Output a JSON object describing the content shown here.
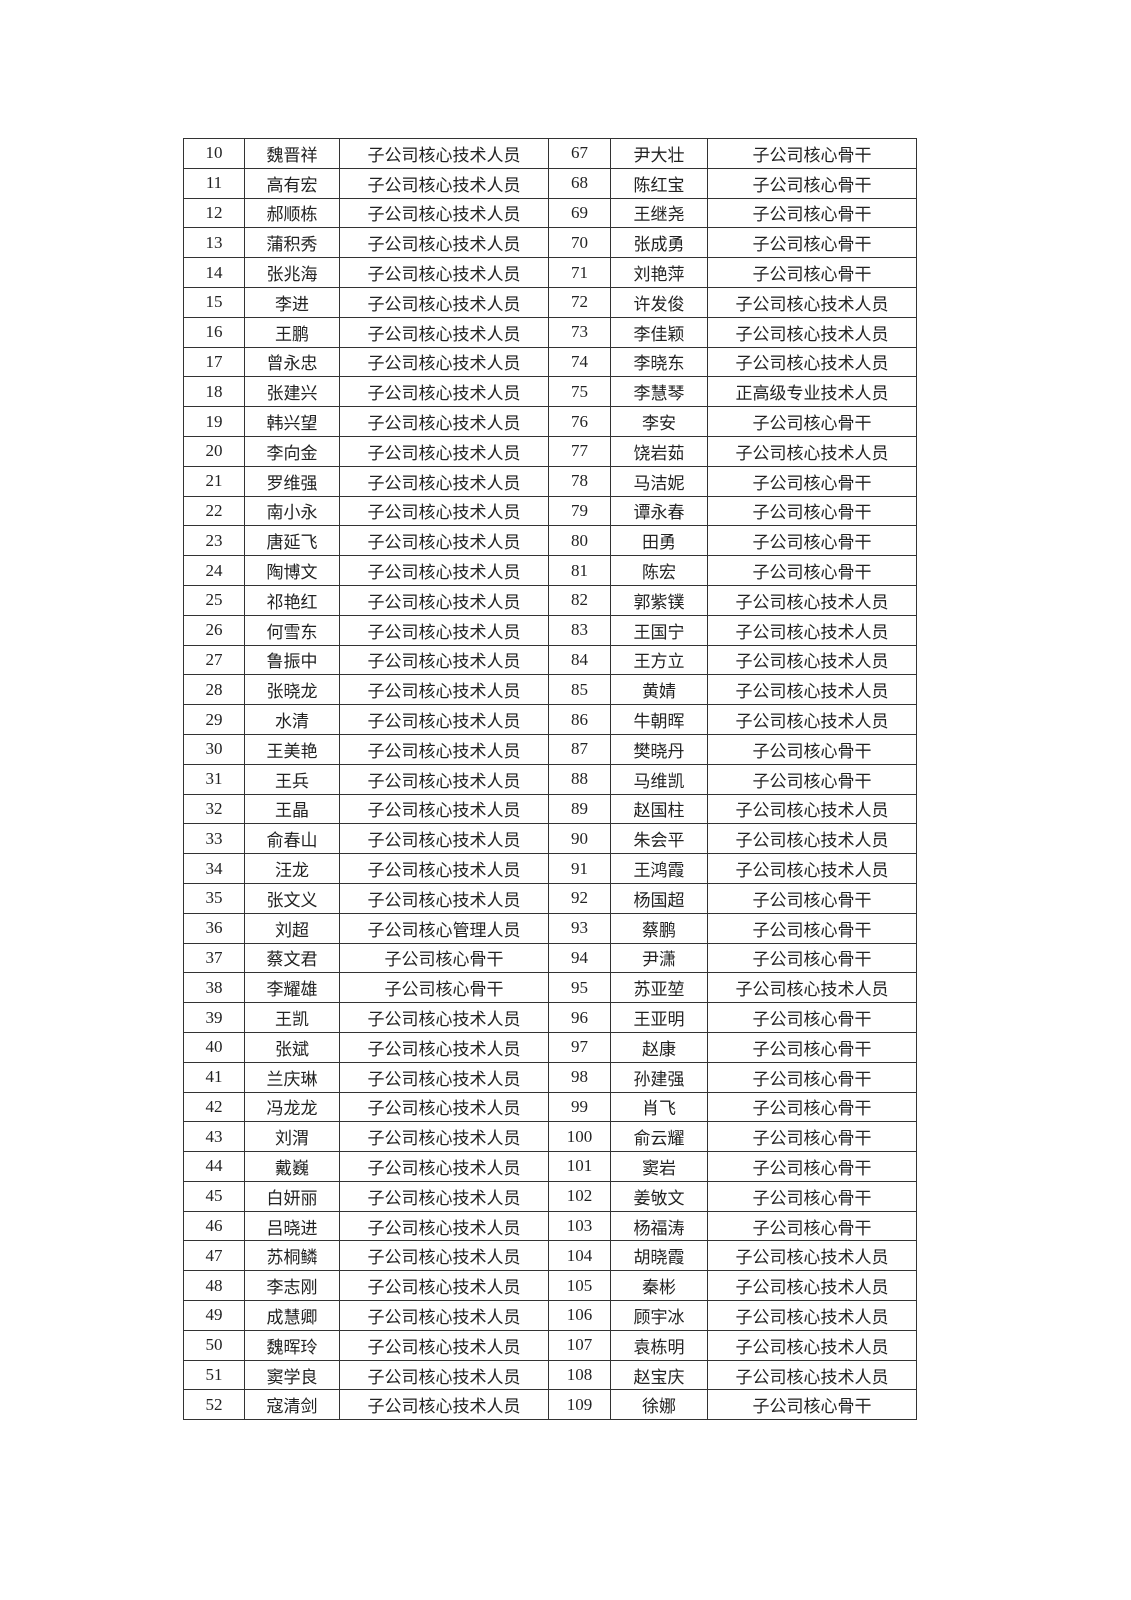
{
  "table": {
    "rows": [
      [
        "10",
        "魏晋祥",
        "子公司核心技术人员",
        "67",
        "尹大壮",
        "子公司核心骨干"
      ],
      [
        "11",
        "高有宏",
        "子公司核心技术人员",
        "68",
        "陈红宝",
        "子公司核心骨干"
      ],
      [
        "12",
        "郝顺栋",
        "子公司核心技术人员",
        "69",
        "王继尧",
        "子公司核心骨干"
      ],
      [
        "13",
        "蒲积秀",
        "子公司核心技术人员",
        "70",
        "张成勇",
        "子公司核心骨干"
      ],
      [
        "14",
        "张兆海",
        "子公司核心技术人员",
        "71",
        "刘艳萍",
        "子公司核心骨干"
      ],
      [
        "15",
        "李进",
        "子公司核心技术人员",
        "72",
        "许发俊",
        "子公司核心技术人员"
      ],
      [
        "16",
        "王鹏",
        "子公司核心技术人员",
        "73",
        "李佳颖",
        "子公司核心技术人员"
      ],
      [
        "17",
        "曾永忠",
        "子公司核心技术人员",
        "74",
        "李晓东",
        "子公司核心技术人员"
      ],
      [
        "18",
        "张建兴",
        "子公司核心技术人员",
        "75",
        "李慧琴",
        "正高级专业技术人员"
      ],
      [
        "19",
        "韩兴望",
        "子公司核心技术人员",
        "76",
        "李安",
        "子公司核心骨干"
      ],
      [
        "20",
        "李向金",
        "子公司核心技术人员",
        "77",
        "饶岩茹",
        "子公司核心技术人员"
      ],
      [
        "21",
        "罗维强",
        "子公司核心技术人员",
        "78",
        "马洁妮",
        "子公司核心骨干"
      ],
      [
        "22",
        "南小永",
        "子公司核心技术人员",
        "79",
        "谭永春",
        "子公司核心骨干"
      ],
      [
        "23",
        "唐延飞",
        "子公司核心技术人员",
        "80",
        "田勇",
        "子公司核心骨干"
      ],
      [
        "24",
        "陶博文",
        "子公司核心技术人员",
        "81",
        "陈宏",
        "子公司核心骨干"
      ],
      [
        "25",
        "祁艳红",
        "子公司核心技术人员",
        "82",
        "郭紫镤",
        "子公司核心技术人员"
      ],
      [
        "26",
        "何雪东",
        "子公司核心技术人员",
        "83",
        "王国宁",
        "子公司核心技术人员"
      ],
      [
        "27",
        "鲁振中",
        "子公司核心技术人员",
        "84",
        "王方立",
        "子公司核心技术人员"
      ],
      [
        "28",
        "张晓龙",
        "子公司核心技术人员",
        "85",
        "黄婧",
        "子公司核心技术人员"
      ],
      [
        "29",
        "水清",
        "子公司核心技术人员",
        "86",
        "牛朝晖",
        "子公司核心技术人员"
      ],
      [
        "30",
        "王美艳",
        "子公司核心技术人员",
        "87",
        "樊晓丹",
        "子公司核心骨干"
      ],
      [
        "31",
        "王兵",
        "子公司核心技术人员",
        "88",
        "马维凯",
        "子公司核心骨干"
      ],
      [
        "32",
        "王晶",
        "子公司核心技术人员",
        "89",
        "赵国柱",
        "子公司核心技术人员"
      ],
      [
        "33",
        "俞春山",
        "子公司核心技术人员",
        "90",
        "朱会平",
        "子公司核心技术人员"
      ],
      [
        "34",
        "汪龙",
        "子公司核心技术人员",
        "91",
        "王鸿霞",
        "子公司核心技术人员"
      ],
      [
        "35",
        "张文义",
        "子公司核心技术人员",
        "92",
        "杨国超",
        "子公司核心骨干"
      ],
      [
        "36",
        "刘超",
        "子公司核心管理人员",
        "93",
        "蔡鹏",
        "子公司核心骨干"
      ],
      [
        "37",
        "蔡文君",
        "子公司核心骨干",
        "94",
        "尹潇",
        "子公司核心骨干"
      ],
      [
        "38",
        "李耀雄",
        "子公司核心骨干",
        "95",
        "苏亚堃",
        "子公司核心技术人员"
      ],
      [
        "39",
        "王凯",
        "子公司核心技术人员",
        "96",
        "王亚明",
        "子公司核心骨干"
      ],
      [
        "40",
        "张斌",
        "子公司核心技术人员",
        "97",
        "赵康",
        "子公司核心骨干"
      ],
      [
        "41",
        "兰庆琳",
        "子公司核心技术人员",
        "98",
        "孙建强",
        "子公司核心骨干"
      ],
      [
        "42",
        "冯龙龙",
        "子公司核心技术人员",
        "99",
        "肖飞",
        "子公司核心骨干"
      ],
      [
        "43",
        "刘渭",
        "子公司核心技术人员",
        "100",
        "俞云耀",
        "子公司核心骨干"
      ],
      [
        "44",
        "戴巍",
        "子公司核心技术人员",
        "101",
        "窦岩",
        "子公司核心骨干"
      ],
      [
        "45",
        "白妍丽",
        "子公司核心技术人员",
        "102",
        "姜敂文",
        "子公司核心骨干"
      ],
      [
        "46",
        "吕晓进",
        "子公司核心技术人员",
        "103",
        "杨福涛",
        "子公司核心骨干"
      ],
      [
        "47",
        "苏桐鳞",
        "子公司核心技术人员",
        "104",
        "胡晓霞",
        "子公司核心技术人员"
      ],
      [
        "48",
        "李志刚",
        "子公司核心技术人员",
        "105",
        "秦彬",
        "子公司核心技术人员"
      ],
      [
        "49",
        "成慧卿",
        "子公司核心技术人员",
        "106",
        "顾宇冰",
        "子公司核心技术人员"
      ],
      [
        "50",
        "魏晖玲",
        "子公司核心技术人员",
        "107",
        "袁栋明",
        "子公司核心技术人员"
      ],
      [
        "51",
        "窦学良",
        "子公司核心技术人员",
        "108",
        "赵宝庆",
        "子公司核心技术人员"
      ],
      [
        "52",
        "寇清剑",
        "子公司核心技术人员",
        "109",
        "徐娜",
        "子公司核心骨干"
      ]
    ]
  }
}
